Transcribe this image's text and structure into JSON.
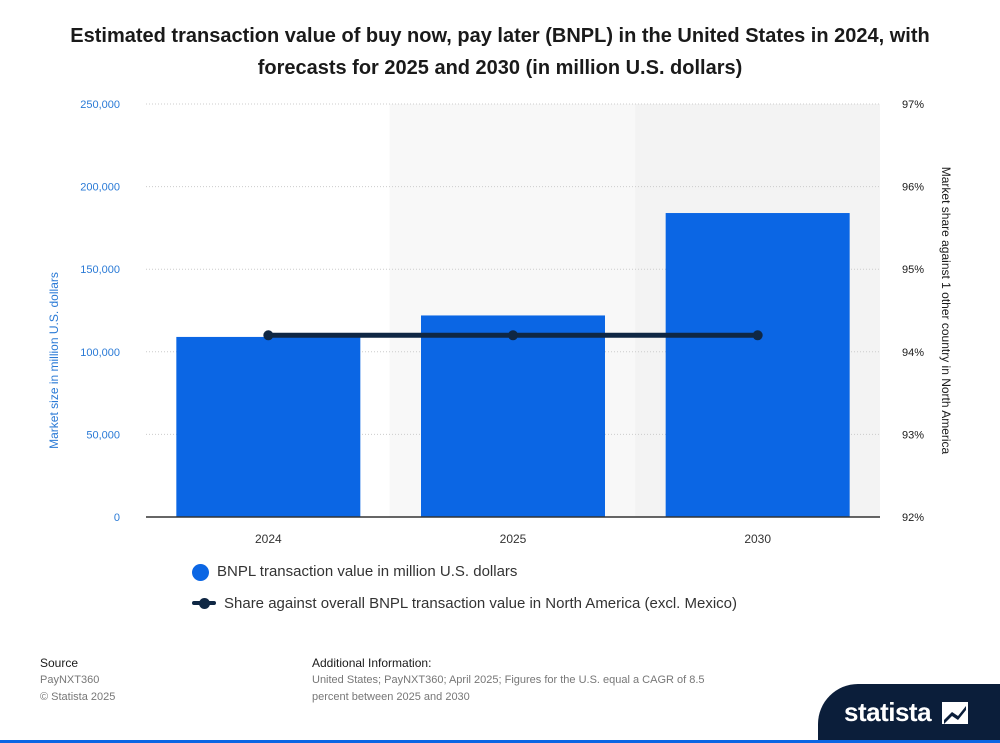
{
  "title": "Estimated transaction value of buy now, pay later (BNPL) in the United States in 2024, with forecasts for 2025 and 2030 (in million U.S. dollars)",
  "colors": {
    "bar": "#0b66e4",
    "line": "#0f2744",
    "left_axis": "#2a7ad6",
    "grid": "#cccccc",
    "band": "#f3f3f3"
  },
  "chart_data": {
    "type": "bar+line",
    "title": "Estimated transaction value of buy now, pay later (BNPL) in the United States in 2024, with forecasts for 2025 and 2030 (in million U.S. dollars)",
    "categories": [
      "2024",
      "2025",
      "2030"
    ],
    "series": [
      {
        "name": "BNPL transaction value in million U.S. dollars",
        "type": "bar",
        "axis": "left",
        "values": [
          109000,
          122000,
          184000
        ]
      },
      {
        "name": "Share against overall BNPL transaction value in North America (excl. Mexico)",
        "type": "line",
        "axis": "right",
        "values": [
          94.2,
          94.2,
          94.2
        ]
      }
    ],
    "left_axis": {
      "label": "Market size in million U.S. dollars",
      "ylim": [
        0,
        250000
      ],
      "ticks": [
        "0",
        "50,000",
        "100,000",
        "150,000",
        "200,000",
        "250,000"
      ]
    },
    "right_axis": {
      "label": "Market share against 1 other country in North America",
      "ylim": [
        92,
        97
      ],
      "ticks": [
        "92%",
        "93%",
        "94%",
        "95%",
        "96%",
        "97%"
      ]
    },
    "grid": true,
    "legend_position": "bottom-left"
  },
  "legend": [
    "BNPL transaction value in million U.S. dollars",
    "Share against overall BNPL transaction value in North America (excl. Mexico)"
  ],
  "footer": {
    "source_heading": "Source",
    "source_lines": [
      "PayNXT360",
      "© Statista 2025"
    ],
    "info_heading": "Additional Information:",
    "info_text": "United States; PayNXT360; April 2025; Figures for the U.S. equal a CAGR of 8.5 percent between 2025 and 2030"
  },
  "brand": "statista"
}
